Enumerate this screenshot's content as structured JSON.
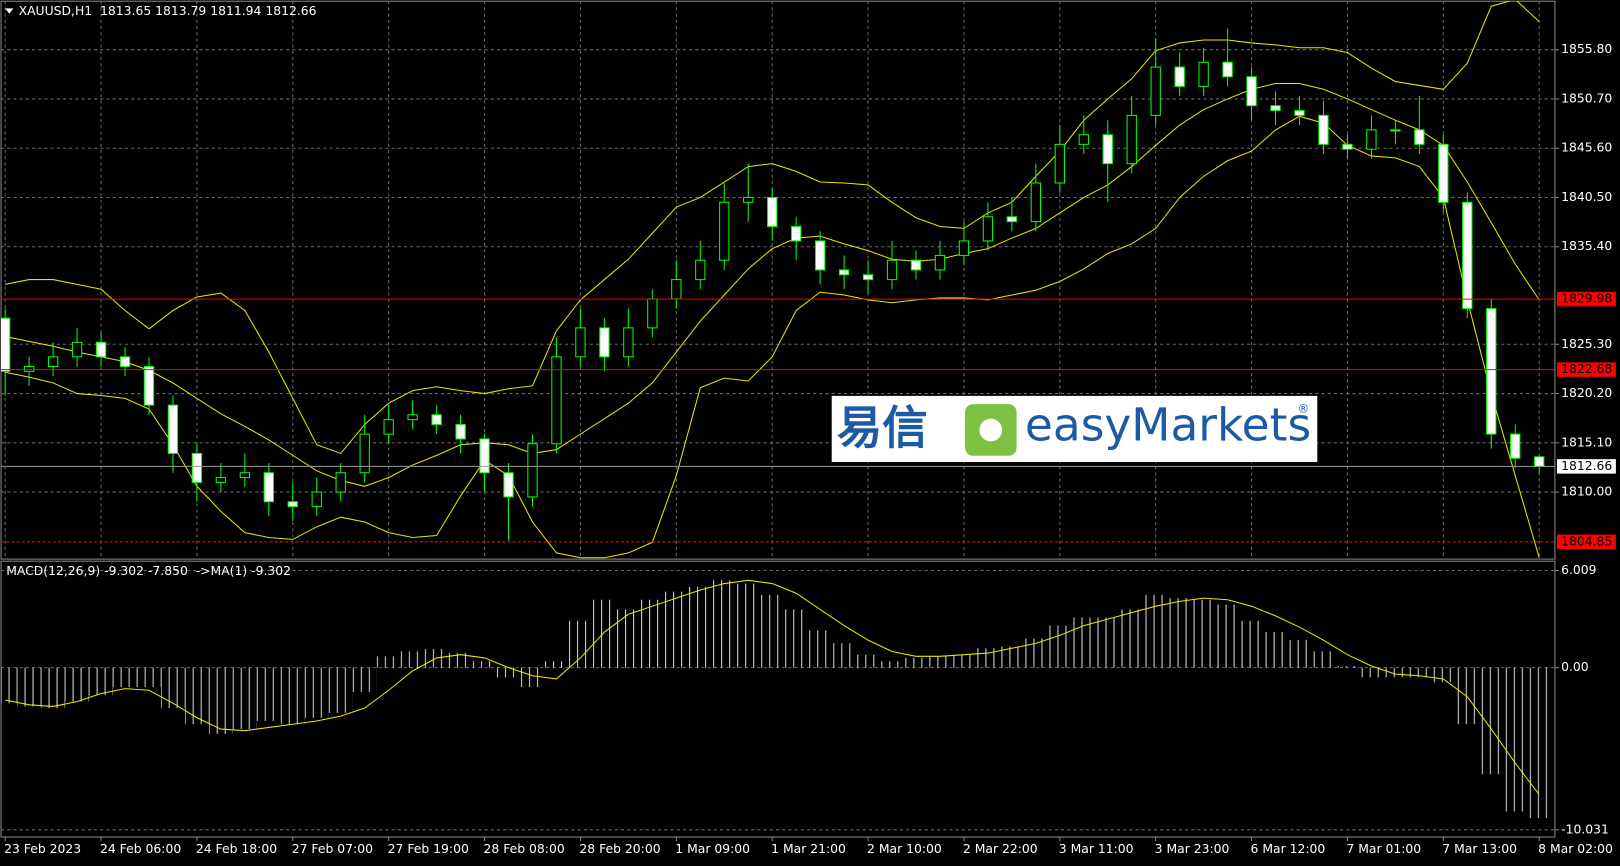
{
  "chart_data": [
    {
      "type": "candlestick",
      "title": "XAUUSD,H1  1813.65 1813.79 1811.94 1812.66",
      "ylim": [
        1803.06,
        1860.82
      ],
      "yticks": [
        {
          "value": 1855.8,
          "label": "1855.80"
        },
        {
          "value": 1850.7,
          "label": "1850.70"
        },
        {
          "value": 1845.6,
          "label": "1845.60"
        },
        {
          "value": 1840.5,
          "label": "1840.50"
        },
        {
          "value": 1835.4,
          "label": "1835.40"
        },
        {
          "value": 1825.3,
          "label": "1825.30"
        },
        {
          "value": 1820.2,
          "label": "1820.20"
        },
        {
          "value": 1815.1,
          "label": "1815.10"
        },
        {
          "value": 1810,
          "label": "1810.00"
        }
      ],
      "grid": true,
      "candle_color": "#00ff00",
      "bull_color": "#000000",
      "bear_color": "#ffffff",
      "open": [
        1828,
        1822.5,
        1823,
        1824,
        1825.5,
        1824,
        1823,
        1819,
        1814,
        1811,
        1811.5,
        1812,
        1809,
        1808.5,
        1810,
        1812,
        1816,
        1817.5,
        1818,
        1817,
        1815.5,
        1812,
        1809.5,
        1815,
        1824,
        1827,
        1824,
        1827,
        1830,
        1832,
        1834,
        1840,
        1840.5,
        1837.5,
        1836,
        1833,
        1832.5,
        1832,
        1834,
        1833,
        1834.5,
        1836,
        1838.5,
        1838,
        1842,
        1846,
        1847,
        1844,
        1849,
        1854,
        1852,
        1854.5,
        1853,
        1850,
        1849.5,
        1849,
        1846,
        1845.5,
        1847.5,
        1847.5,
        1846,
        1840,
        1829,
        1816,
        1813.65
      ],
      "high": [
        1829,
        1824,
        1825.5,
        1827,
        1826.5,
        1825,
        1824,
        1820,
        1815,
        1813,
        1814,
        1813,
        1811,
        1811.5,
        1813,
        1818,
        1819,
        1819.5,
        1819,
        1818,
        1816,
        1813,
        1816,
        1826,
        1829,
        1828,
        1829,
        1831,
        1834,
        1836,
        1842,
        1844,
        1841.5,
        1838.5,
        1837,
        1834.5,
        1834,
        1836,
        1835,
        1836,
        1838,
        1840,
        1840.5,
        1844,
        1848,
        1849,
        1848.5,
        1851,
        1857,
        1855.5,
        1856,
        1858,
        1854,
        1851.5,
        1851,
        1850.5,
        1847,
        1849,
        1848.5,
        1851,
        1847,
        1841,
        1830,
        1817,
        1813.79
      ],
      "low": [
        1820,
        1821,
        1822,
        1823,
        1823,
        1822,
        1818,
        1812,
        1809,
        1810,
        1810.5,
        1807.5,
        1807,
        1807.5,
        1809,
        1811,
        1815,
        1816.5,
        1816,
        1814,
        1810,
        1805,
        1808.5,
        1814,
        1823,
        1822.5,
        1823,
        1826,
        1829,
        1831,
        1833,
        1838,
        1836,
        1834,
        1831.5,
        1831,
        1830.5,
        1831,
        1832,
        1832,
        1833.5,
        1835,
        1837,
        1837,
        1841,
        1845,
        1840,
        1843,
        1848,
        1851,
        1851,
        1852,
        1848.5,
        1848,
        1848,
        1845,
        1844.5,
        1844.5,
        1846,
        1845,
        1839,
        1828,
        1814.5,
        1812.5,
        1811.94
      ],
      "close": [
        1822.5,
        1823,
        1824,
        1825.5,
        1824,
        1823,
        1819,
        1814,
        1811,
        1811.5,
        1812,
        1809,
        1808.5,
        1810,
        1812,
        1816,
        1817.5,
        1818,
        1817,
        1815.5,
        1812,
        1809.5,
        1815,
        1824,
        1827,
        1824,
        1827,
        1830,
        1832,
        1834,
        1840,
        1840.5,
        1837.5,
        1836,
        1833,
        1832.5,
        1832,
        1834,
        1833,
        1834.5,
        1836,
        1838.5,
        1838,
        1842,
        1846,
        1847,
        1844,
        1849,
        1854,
        1852,
        1854.5,
        1853,
        1850,
        1849.5,
        1849,
        1846,
        1845.5,
        1847.5,
        1847.5,
        1846,
        1840,
        1829,
        1816,
        1813.5,
        1812.66
      ],
      "band_color": "#e6e600",
      "bands": {
        "upper": [
          1831.5,
          1832,
          1832,
          1831.5,
          1831,
          1828.8,
          1826.9,
          1828.8,
          1830.2,
          1830.6,
          1828.8,
          1824.5,
          1819.7,
          1814.9,
          1814,
          1817,
          1819.2,
          1820.5,
          1820.9,
          1820.5,
          1820.2,
          1820.7,
          1821,
          1826.7,
          1829.9,
          1832,
          1834.1,
          1836.8,
          1839.5,
          1840.5,
          1842.1,
          1843.7,
          1844,
          1843.2,
          1842.1,
          1842,
          1841.8,
          1840,
          1838.4,
          1837.5,
          1837.3,
          1838.9,
          1840,
          1842.7,
          1845.3,
          1848.5,
          1850.7,
          1852.8,
          1855.7,
          1856.5,
          1856.8,
          1856.8,
          1856.5,
          1856.3,
          1856,
          1856,
          1855.5,
          1853.9,
          1852.5,
          1852.1,
          1851.7,
          1854.4,
          1860.3,
          1861,
          1858.7
        ],
        "middle": [
          1826.1,
          1825.6,
          1825.1,
          1824.5,
          1824,
          1823.5,
          1822.6,
          1821.3,
          1819.7,
          1818.1,
          1816.8,
          1815.4,
          1813.8,
          1812.2,
          1811.2,
          1810.6,
          1811.5,
          1812.8,
          1813.8,
          1814.9,
          1815.1,
          1814.9,
          1814,
          1814.4,
          1816,
          1817.6,
          1819.2,
          1821.3,
          1824.5,
          1827.7,
          1830.4,
          1833.1,
          1835.2,
          1836.3,
          1836.5,
          1835.7,
          1835,
          1834.1,
          1833.9,
          1834.1,
          1834.7,
          1835.2,
          1836.3,
          1837.3,
          1838.9,
          1840.5,
          1841.8,
          1843.7,
          1845.9,
          1848,
          1849.6,
          1850.7,
          1851.7,
          1852.3,
          1852.3,
          1851.7,
          1850.7,
          1849.6,
          1848.5,
          1847.5,
          1845.9,
          1842.1,
          1837.9,
          1833.6,
          1829.9
        ],
        "lower": [
          1822.4,
          1821.9,
          1821.3,
          1820.2,
          1820,
          1819.7,
          1818.6,
          1814.9,
          1810.6,
          1808,
          1805.8,
          1805.3,
          1805.1,
          1806.4,
          1807.4,
          1806.9,
          1805.8,
          1805.3,
          1805.5,
          1809.6,
          1813.3,
          1811.7,
          1806.9,
          1803.7,
          1803.2,
          1803.2,
          1803.7,
          1804.8,
          1811.7,
          1820.8,
          1821.8,
          1821.5,
          1824,
          1828.8,
          1830.7,
          1830.4,
          1829.9,
          1829.6,
          1829.9,
          1830.1,
          1830.1,
          1829.9,
          1830.4,
          1830.9,
          1831.8,
          1833.1,
          1834.7,
          1835.7,
          1837.3,
          1840.5,
          1842.7,
          1844.3,
          1845.3,
          1847.5,
          1848.9,
          1848.2,
          1845.9,
          1844.8,
          1844.6,
          1843.7,
          1840.5,
          1829.9,
          1820.2,
          1811.7,
          1803.2
        ]
      },
      "levels": [
        {
          "value": 1829.98,
          "color": "#ff0000",
          "style": "solid"
        },
        {
          "value": 1822.68,
          "color": "#ff0000",
          "style": "solid"
        },
        {
          "value": 1804.85,
          "color": "#ff0000",
          "style": "dashed"
        }
      ],
      "last_price": 1812.66,
      "watermark": {
        "chinese": "易信",
        "brand": "easyMarkets",
        "registered": "®"
      }
    },
    {
      "type": "macd",
      "title": "MACD(12,26,9) -9.302 -7.850  ->MA(1) -9.302",
      "ylim": [
        -10.478,
        6.584
      ],
      "yticks": [
        6.009,
        {
          "value": 0,
          "label": "0.00"
        },
        -10.031
      ],
      "histogram_color": "#d8d8d8",
      "signal_color": "#e6e600",
      "categories": [
        "23 Feb 2023",
        null,
        null,
        null,
        "24 Feb 06:00",
        null,
        null,
        null,
        "24 Feb 18:00",
        null,
        null,
        null,
        "27 Feb 07:00",
        null,
        null,
        null,
        "27 Feb 19:00",
        null,
        null,
        null,
        "28 Feb 08:00",
        null,
        null,
        null,
        "28 Feb 20:00",
        null,
        null,
        null,
        "1 Mar 09:00",
        null,
        null,
        null,
        "1 Mar 21:00",
        null,
        null,
        null,
        "2 Mar 10:00",
        null,
        null,
        null,
        "2 Mar 22:00",
        null,
        null,
        null,
        "3 Mar 11:00",
        null,
        null,
        null,
        "3 Mar 23:00",
        null,
        null,
        null,
        "6 Mar 12:00",
        null,
        null,
        null,
        "7 Mar 01:00",
        null,
        null,
        null,
        "7 Mar 13:00",
        null,
        null,
        null,
        "8 Mar 02:00"
      ],
      "histogram": [
        -2.2,
        -2.4,
        -2.5,
        -2.1,
        -1.7,
        -1.2,
        -1.2,
        -2.5,
        -3.5,
        -4.1,
        -3.8,
        -3.3,
        -3.5,
        -3.1,
        -2.8,
        -1.5,
        0.7,
        1.0,
        1.15,
        0.9,
        0.4,
        -0.6,
        -1.2,
        0.4,
        2.9,
        4.2,
        3.6,
        4.2,
        4.7,
        5.0,
        5.4,
        5.2,
        4.5,
        3.6,
        2.3,
        1.5,
        0.8,
        0.4,
        0.6,
        0.7,
        0.8,
        1.2,
        1.3,
        1.8,
        2.6,
        3.1,
        3.1,
        3.6,
        4.5,
        4.3,
        4.2,
        3.9,
        2.9,
        2.2,
        1.7,
        1.0,
        0.1,
        -0.6,
        -0.6,
        -0.6,
        -0.9,
        -3.5,
        -6.6,
        -8.9,
        -9.302
      ],
      "signal": [
        -2.0,
        -2.3,
        -2.4,
        -2.1,
        -1.6,
        -1.3,
        -1.4,
        -2.2,
        -3.1,
        -3.8,
        -3.9,
        -3.7,
        -3.5,
        -3.3,
        -3.0,
        -2.5,
        -1.4,
        -0.2,
        0.6,
        0.8,
        0.6,
        0.0,
        -0.5,
        -0.7,
        0.6,
        2.2,
        3.3,
        3.8,
        4.3,
        4.8,
        5.2,
        5.4,
        5.2,
        4.6,
        3.6,
        2.6,
        1.7,
        1.0,
        0.7,
        0.7,
        0.8,
        0.9,
        1.2,
        1.5,
        2.0,
        2.6,
        3.0,
        3.4,
        3.8,
        4.1,
        4.3,
        4.2,
        3.8,
        3.2,
        2.5,
        1.7,
        0.8,
        0.1,
        -0.4,
        -0.5,
        -0.7,
        -1.8,
        -3.8,
        -5.9,
        -7.85
      ]
    }
  ]
}
